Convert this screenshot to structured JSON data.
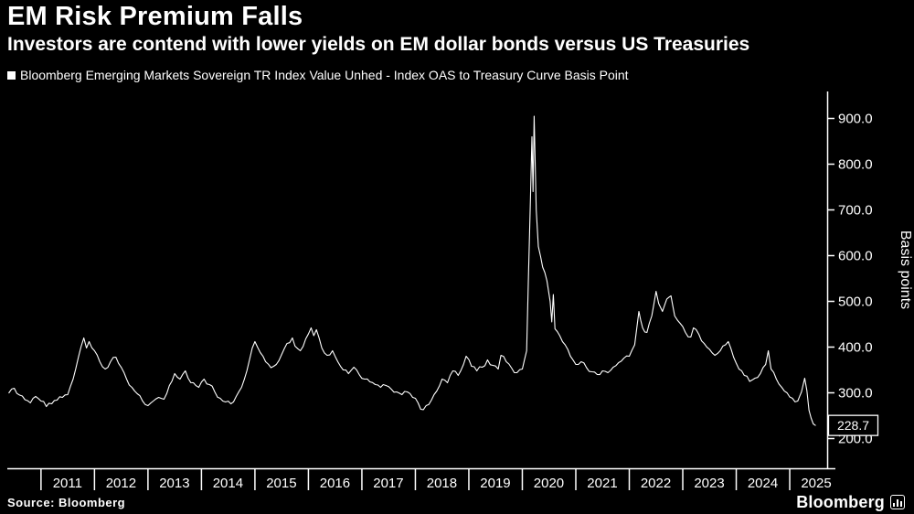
{
  "header": {
    "title": "EM Risk Premium Falls",
    "subtitle": "Investors are contend with lower yields on EM dollar bonds versus US Treasuries"
  },
  "legend": {
    "label": "Bloomberg Emerging Markets Sovereign TR Index Value Unhed - Index OAS to Treasury Curve Basis Point",
    "swatch_color": "#ffffff"
  },
  "footer": {
    "source": "Source: Bloomberg",
    "brand": "Bloomberg"
  },
  "colors": {
    "background": "#000000",
    "foreground": "#ffffff",
    "line": "#ffffff"
  },
  "chart_data": {
    "type": "line",
    "title": "EM Risk Premium Falls",
    "subtitle": "Investors are contend with lower yields on EM dollar bonds versus US Treasuries",
    "xlabel": "",
    "ylabel": "Basis points",
    "grid": false,
    "legend_position": "top-left",
    "y_axis_side": "right",
    "xlim": [
      2010.37,
      2025.7
    ],
    "ylim": [
      135,
      959
    ],
    "y_ticks": [
      {
        "value": 900,
        "label": "900.0"
      },
      {
        "value": 800,
        "label": "800.0"
      },
      {
        "value": 700,
        "label": "700.0"
      },
      {
        "value": 600,
        "label": "600.0"
      },
      {
        "value": 500,
        "label": "500.0"
      },
      {
        "value": 400,
        "label": "400.0"
      },
      {
        "value": 300,
        "label": "300.0"
      },
      {
        "value": 200,
        "label": "200.0"
      }
    ],
    "x_ticks": [
      {
        "year": 2011,
        "label": "2011"
      },
      {
        "year": 2012,
        "label": "2012"
      },
      {
        "year": 2013,
        "label": "2013"
      },
      {
        "year": 2014,
        "label": "2014"
      },
      {
        "year": 2015,
        "label": "2015"
      },
      {
        "year": 2016,
        "label": "2016"
      },
      {
        "year": 2017,
        "label": "2017"
      },
      {
        "year": 2018,
        "label": "2018"
      },
      {
        "year": 2019,
        "label": "2019"
      },
      {
        "year": 2020,
        "label": "2020"
      },
      {
        "year": 2021,
        "label": "2021"
      },
      {
        "year": 2022,
        "label": "2022"
      },
      {
        "year": 2023,
        "label": "2023"
      },
      {
        "year": 2024,
        "label": "2024"
      },
      {
        "year": 2025,
        "label": "2025"
      }
    ],
    "last_value_label": "228.7",
    "series": [
      {
        "name": "Bloomberg Emerging Markets Sovereign TR Index Value Unhed - Index OAS to Treasury Curve Basis Point",
        "color": "#ffffff",
        "points": [
          [
            2010.4,
            300
          ],
          [
            2010.5,
            310
          ],
          [
            2010.6,
            295
          ],
          [
            2010.7,
            285
          ],
          [
            2010.8,
            278
          ],
          [
            2010.9,
            292
          ],
          [
            2011.0,
            282
          ],
          [
            2011.1,
            270
          ],
          [
            2011.2,
            276
          ],
          [
            2011.3,
            284
          ],
          [
            2011.4,
            290
          ],
          [
            2011.5,
            296
          ],
          [
            2011.6,
            330
          ],
          [
            2011.7,
            378
          ],
          [
            2011.8,
            420
          ],
          [
            2011.85,
            398
          ],
          [
            2011.9,
            412
          ],
          [
            2012.0,
            392
          ],
          [
            2012.1,
            368
          ],
          [
            2012.2,
            352
          ],
          [
            2012.3,
            368
          ],
          [
            2012.4,
            378
          ],
          [
            2012.5,
            356
          ],
          [
            2012.6,
            330
          ],
          [
            2012.7,
            312
          ],
          [
            2012.8,
            298
          ],
          [
            2012.9,
            282
          ],
          [
            2013.0,
            272
          ],
          [
            2013.1,
            282
          ],
          [
            2013.2,
            290
          ],
          [
            2013.3,
            286
          ],
          [
            2013.4,
            316
          ],
          [
            2013.5,
            342
          ],
          [
            2013.6,
            330
          ],
          [
            2013.7,
            348
          ],
          [
            2013.75,
            332
          ],
          [
            2013.85,
            322
          ],
          [
            2013.95,
            312
          ],
          [
            2014.05,
            330
          ],
          [
            2014.15,
            318
          ],
          [
            2014.25,
            302
          ],
          [
            2014.35,
            288
          ],
          [
            2014.45,
            280
          ],
          [
            2014.55,
            276
          ],
          [
            2014.65,
            292
          ],
          [
            2014.75,
            312
          ],
          [
            2014.85,
            348
          ],
          [
            2014.95,
            398
          ],
          [
            2015.0,
            412
          ],
          [
            2015.1,
            388
          ],
          [
            2015.2,
            368
          ],
          [
            2015.3,
            355
          ],
          [
            2015.4,
            362
          ],
          [
            2015.5,
            384
          ],
          [
            2015.6,
            408
          ],
          [
            2015.7,
            420
          ],
          [
            2015.75,
            402
          ],
          [
            2015.85,
            392
          ],
          [
            2015.95,
            418
          ],
          [
            2016.05,
            442
          ],
          [
            2016.1,
            425
          ],
          [
            2016.15,
            438
          ],
          [
            2016.25,
            398
          ],
          [
            2016.35,
            382
          ],
          [
            2016.45,
            392
          ],
          [
            2016.55,
            368
          ],
          [
            2016.65,
            350
          ],
          [
            2016.75,
            342
          ],
          [
            2016.85,
            356
          ],
          [
            2016.95,
            340
          ],
          [
            2017.05,
            330
          ],
          [
            2017.15,
            324
          ],
          [
            2017.25,
            318
          ],
          [
            2017.35,
            312
          ],
          [
            2017.45,
            316
          ],
          [
            2017.55,
            308
          ],
          [
            2017.65,
            302
          ],
          [
            2017.75,
            296
          ],
          [
            2017.85,
            302
          ],
          [
            2017.95,
            290
          ],
          [
            2018.05,
            278
          ],
          [
            2018.1,
            264
          ],
          [
            2018.2,
            272
          ],
          [
            2018.3,
            284
          ],
          [
            2018.4,
            304
          ],
          [
            2018.5,
            330
          ],
          [
            2018.6,
            322
          ],
          [
            2018.7,
            348
          ],
          [
            2018.8,
            338
          ],
          [
            2018.9,
            362
          ],
          [
            2018.95,
            380
          ],
          [
            2019.05,
            358
          ],
          [
            2019.15,
            348
          ],
          [
            2019.25,
            356
          ],
          [
            2019.35,
            372
          ],
          [
            2019.45,
            360
          ],
          [
            2019.55,
            352
          ],
          [
            2019.6,
            382
          ],
          [
            2019.7,
            368
          ],
          [
            2019.8,
            354
          ],
          [
            2019.9,
            344
          ],
          [
            2020.0,
            352
          ],
          [
            2020.08,
            392
          ],
          [
            2020.15,
            720
          ],
          [
            2020.18,
            860
          ],
          [
            2020.2,
            740
          ],
          [
            2020.22,
            905
          ],
          [
            2020.26,
            700
          ],
          [
            2020.3,
            620
          ],
          [
            2020.38,
            575
          ],
          [
            2020.46,
            545
          ],
          [
            2020.52,
            500
          ],
          [
            2020.55,
            455
          ],
          [
            2020.58,
            515
          ],
          [
            2020.61,
            440
          ],
          [
            2020.7,
            425
          ],
          [
            2020.8,
            405
          ],
          [
            2020.9,
            380
          ],
          [
            2021.0,
            362
          ],
          [
            2021.1,
            368
          ],
          [
            2021.2,
            355
          ],
          [
            2021.3,
            346
          ],
          [
            2021.4,
            340
          ],
          [
            2021.5,
            348
          ],
          [
            2021.6,
            344
          ],
          [
            2021.7,
            356
          ],
          [
            2021.8,
            366
          ],
          [
            2021.9,
            376
          ],
          [
            2022.0,
            380
          ],
          [
            2022.1,
            405
          ],
          [
            2022.18,
            478
          ],
          [
            2022.25,
            442
          ],
          [
            2022.33,
            432
          ],
          [
            2022.42,
            468
          ],
          [
            2022.5,
            522
          ],
          [
            2022.55,
            495
          ],
          [
            2022.62,
            478
          ],
          [
            2022.7,
            505
          ],
          [
            2022.78,
            512
          ],
          [
            2022.85,
            468
          ],
          [
            2022.95,
            452
          ],
          [
            2023.05,
            432
          ],
          [
            2023.15,
            422
          ],
          [
            2023.2,
            442
          ],
          [
            2023.3,
            428
          ],
          [
            2023.4,
            408
          ],
          [
            2023.5,
            395
          ],
          [
            2023.6,
            382
          ],
          [
            2023.7,
            392
          ],
          [
            2023.8,
            405
          ],
          [
            2023.85,
            412
          ],
          [
            2023.95,
            378
          ],
          [
            2024.05,
            352
          ],
          [
            2024.15,
            338
          ],
          [
            2024.25,
            325
          ],
          [
            2024.35,
            332
          ],
          [
            2024.45,
            342
          ],
          [
            2024.55,
            362
          ],
          [
            2024.6,
            392
          ],
          [
            2024.65,
            352
          ],
          [
            2024.75,
            330
          ],
          [
            2024.85,
            312
          ],
          [
            2024.95,
            300
          ],
          [
            2025.05,
            288
          ],
          [
            2025.15,
            282
          ],
          [
            2025.22,
            302
          ],
          [
            2025.28,
            332
          ],
          [
            2025.32,
            305
          ],
          [
            2025.36,
            262
          ],
          [
            2025.4,
            245
          ],
          [
            2025.44,
            232
          ],
          [
            2025.48,
            228.7
          ]
        ]
      }
    ]
  }
}
